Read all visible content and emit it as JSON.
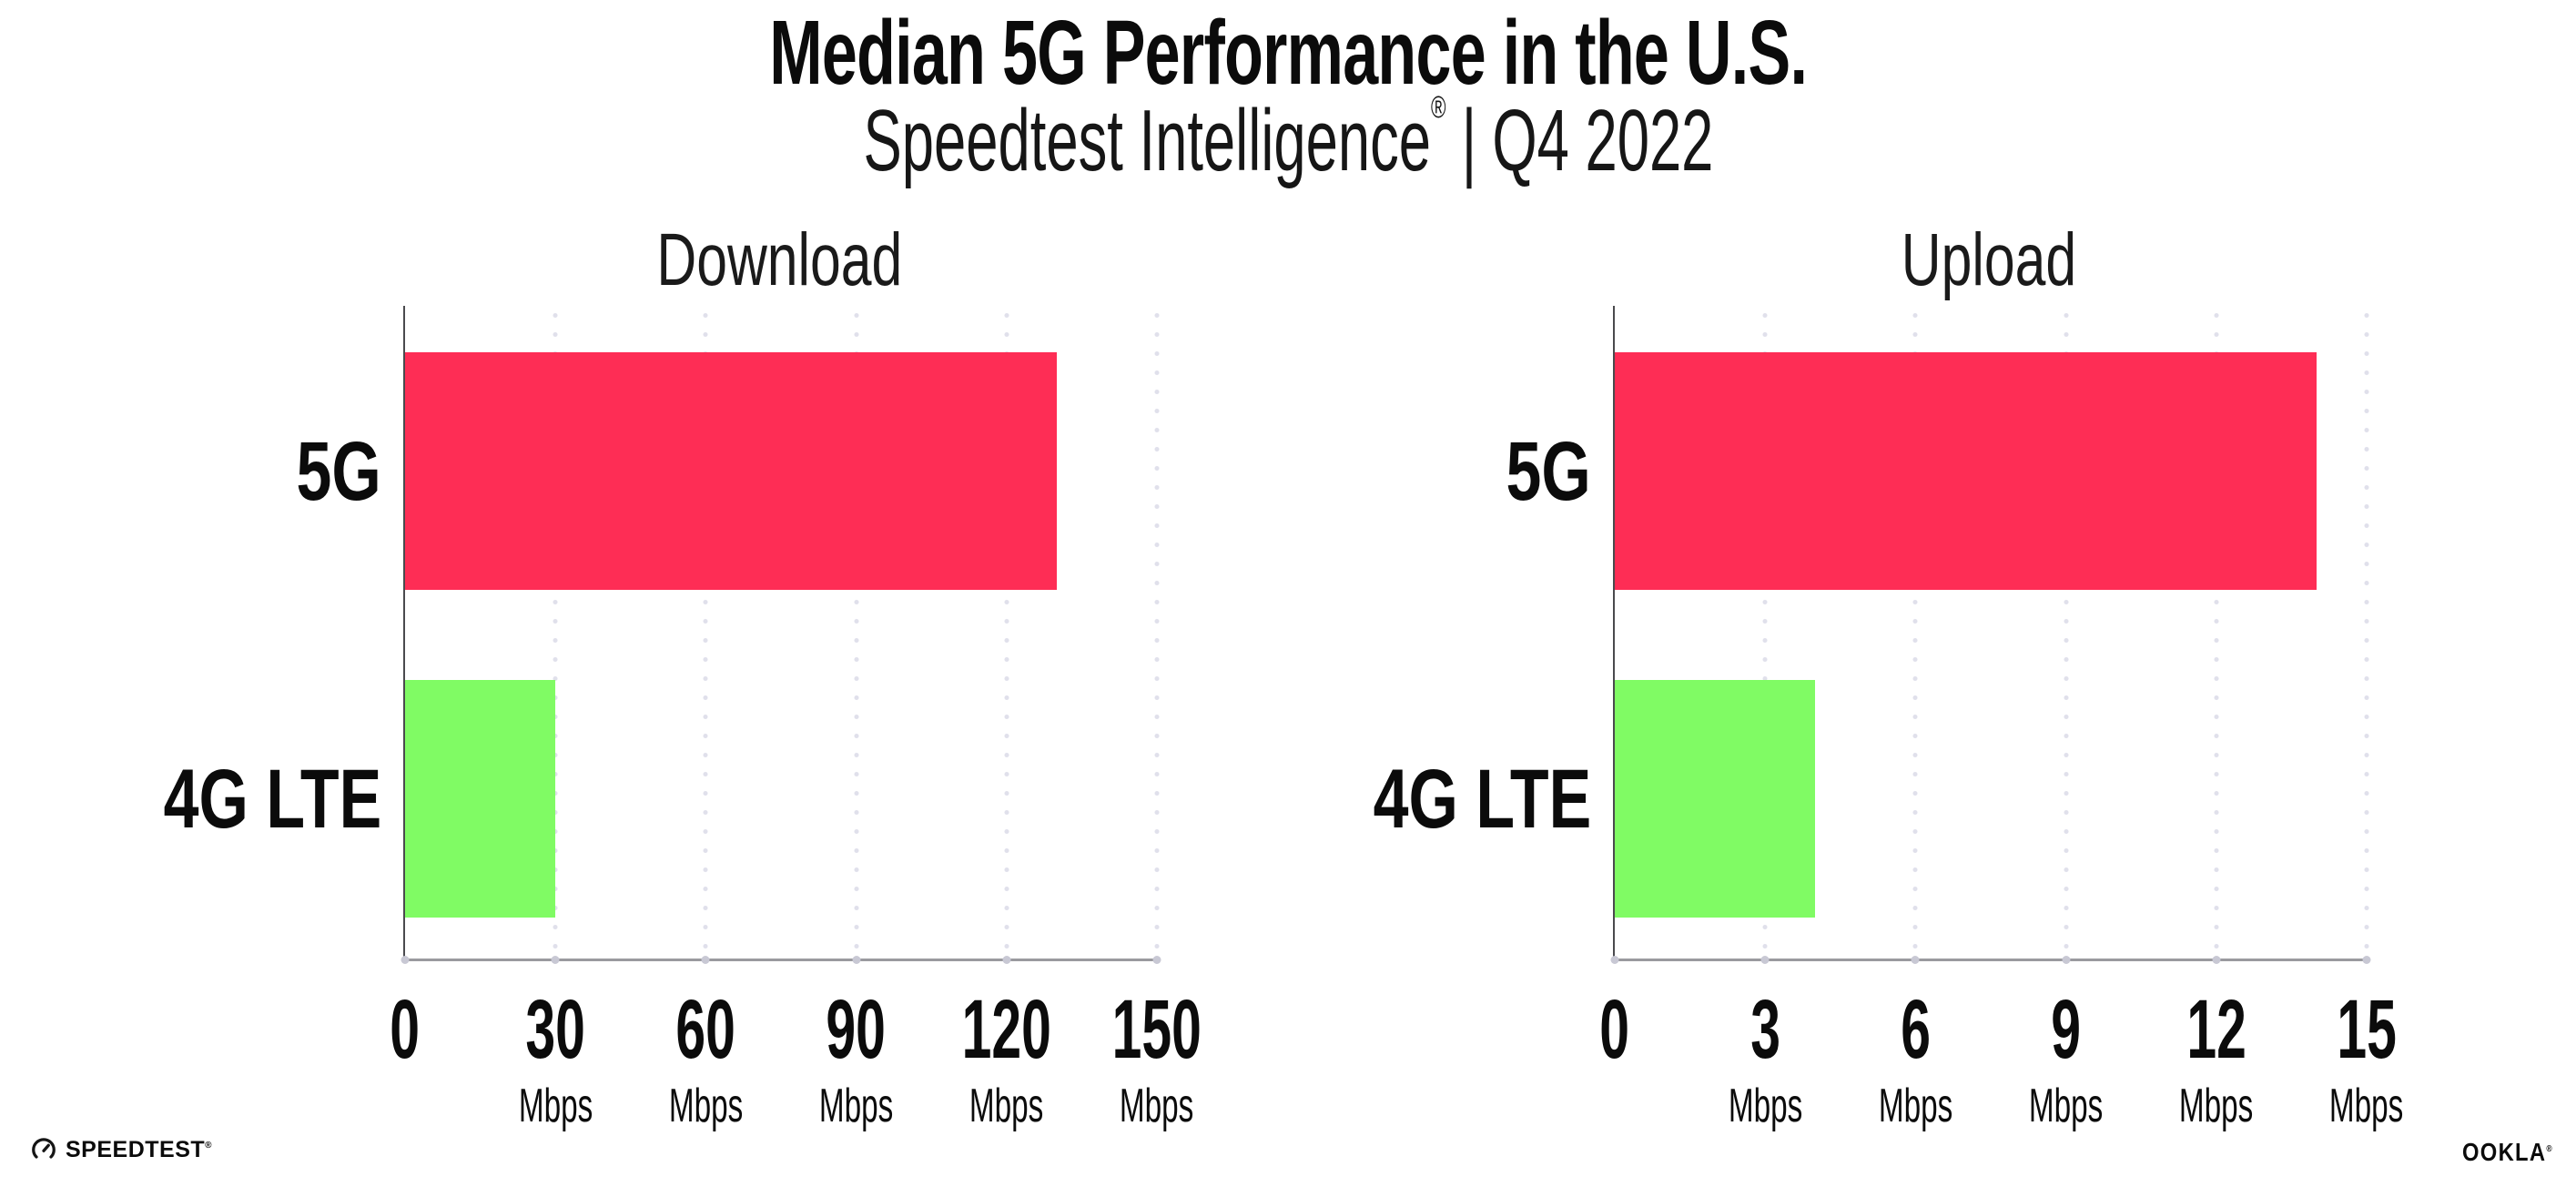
{
  "page": {
    "background": "#ffffff"
  },
  "header": {
    "title": "Median 5G Performance in the U.S.",
    "subtitle_brand": "Speedtest Intelligence",
    "subtitle_reg": "®",
    "subtitle_sep": "|",
    "subtitle_period": "Q4 2022"
  },
  "colors": {
    "bar_5g": "#fe2d55",
    "bar_4g_lte": "#80fb64",
    "axis_baseline": "#9a9a9f",
    "axis_spine": "#4a4a4e",
    "grid_dot": "#e0e0eb",
    "tick_dot": "#c8c8d4",
    "text": "#0b0b0b"
  },
  "chart_data": [
    {
      "type": "bar",
      "orientation": "horizontal",
      "title": "Download",
      "categories": [
        "5G",
        "4G LTE"
      ],
      "values": [
        130,
        30
      ],
      "unit": "Mbps",
      "xlim": [
        0,
        150
      ],
      "ticks": [
        0,
        30,
        60,
        90,
        120,
        150
      ],
      "bar_colors": [
        "#fe2d55",
        "#80fb64"
      ],
      "xlabel": "",
      "ylabel": "",
      "grid": "dotted-vertical",
      "legend": "none"
    },
    {
      "type": "bar",
      "orientation": "horizontal",
      "title": "Upload",
      "categories": [
        "5G",
        "4G LTE"
      ],
      "values": [
        14,
        4
      ],
      "unit": "Mbps",
      "xlim": [
        0,
        15
      ],
      "ticks": [
        0,
        3,
        6,
        9,
        12,
        15
      ],
      "bar_colors": [
        "#fe2d55",
        "#80fb64"
      ],
      "xlabel": "",
      "ylabel": "",
      "grid": "dotted-vertical",
      "legend": "none"
    }
  ],
  "footer": {
    "speedtest_label": "SPEEDTEST",
    "speedtest_reg": "®",
    "ookla_label": "OOKLA",
    "ookla_reg": "®"
  }
}
